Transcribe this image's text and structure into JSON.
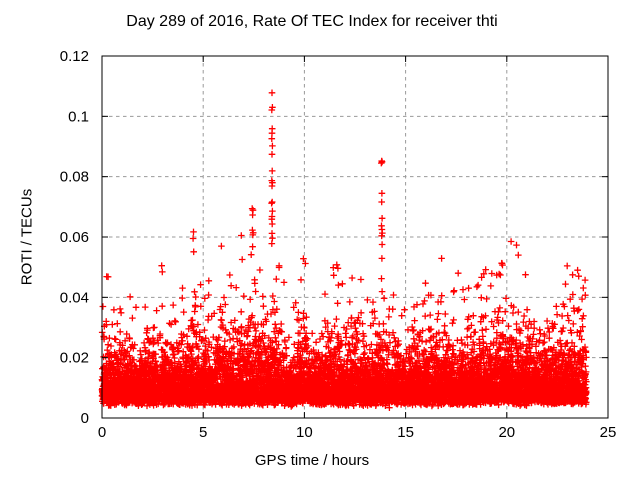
{
  "chart_data": {
    "type": "scatter",
    "title": "Day 289 of 2016, Rate Of TEC Index for receiver thti",
    "xlabel": "GPS time / hours",
    "ylabel": "ROTI / TECUs",
    "xlim": [
      0,
      25
    ],
    "ylim": [
      0,
      0.12
    ],
    "xticks": [
      0,
      5,
      10,
      15,
      20,
      25
    ],
    "xtick_labels": [
      "0",
      "5",
      "10",
      "15",
      "20",
      "25"
    ],
    "yticks": [
      0,
      0.02,
      0.04,
      0.06,
      0.08,
      0.1,
      0.12
    ],
    "ytick_labels": [
      "0",
      "0.02",
      "0.04",
      "0.06",
      "0.08",
      "0.1",
      "0.12"
    ],
    "grid": {
      "show": true,
      "color": "#999999",
      "dash": [
        3.5,
        3.5
      ]
    },
    "border_color": "#000000",
    "marker": {
      "glyph": "plus",
      "color": "#ff0000",
      "half_size": 3.3,
      "stroke_width": 1.3
    },
    "time_range_hours": [
      0,
      23.93
    ],
    "approx_point_count": 9000,
    "seed": 289,
    "band": {
      "floor": 0.0055,
      "tail_divisor": 6
    },
    "upper_envelope": [
      [
        0,
        0.044
      ],
      [
        0.25,
        0.047
      ],
      [
        0.6,
        0.041
      ],
      [
        0.9,
        0.038
      ],
      [
        1.2,
        0.041
      ],
      [
        1.6,
        0.037
      ],
      [
        2.0,
        0.036
      ],
      [
        2.4,
        0.042
      ],
      [
        2.9,
        0.05
      ],
      [
        3.2,
        0.046
      ],
      [
        3.5,
        0.041
      ],
      [
        3.9,
        0.044
      ],
      [
        4.2,
        0.043
      ],
      [
        4.5,
        0.057
      ],
      [
        4.85,
        0.046
      ],
      [
        5.2,
        0.043
      ],
      [
        5.55,
        0.046
      ],
      [
        5.9,
        0.054
      ],
      [
        6.3,
        0.046
      ],
      [
        6.6,
        0.044
      ],
      [
        6.95,
        0.055
      ],
      [
        7.2,
        0.05
      ],
      [
        7.45,
        0.058
      ],
      [
        7.9,
        0.051
      ],
      [
        8.2,
        0.055
      ],
      [
        8.4,
        0.059
      ],
      [
        8.6,
        0.054
      ],
      [
        8.85,
        0.047
      ],
      [
        9.2,
        0.037
      ],
      [
        9.45,
        0.04
      ],
      [
        9.7,
        0.049
      ],
      [
        10.05,
        0.047
      ],
      [
        10.45,
        0.039
      ],
      [
        10.7,
        0.037
      ],
      [
        11.1,
        0.044
      ],
      [
        11.55,
        0.05
      ],
      [
        11.8,
        0.047
      ],
      [
        12.1,
        0.049
      ],
      [
        12.4,
        0.044
      ],
      [
        12.7,
        0.046
      ],
      [
        13.0,
        0.042
      ],
      [
        13.4,
        0.043
      ],
      [
        13.85,
        0.042
      ],
      [
        14.2,
        0.04
      ],
      [
        14.55,
        0.043
      ],
      [
        14.9,
        0.041
      ],
      [
        15.3,
        0.043
      ],
      [
        15.7,
        0.047
      ],
      [
        16.1,
        0.043
      ],
      [
        16.5,
        0.045
      ],
      [
        16.8,
        0.051
      ],
      [
        17.1,
        0.043
      ],
      [
        17.5,
        0.047
      ],
      [
        17.85,
        0.044
      ],
      [
        18.2,
        0.041
      ],
      [
        18.6,
        0.044
      ],
      [
        18.95,
        0.051
      ],
      [
        19.3,
        0.047
      ],
      [
        19.7,
        0.05
      ],
      [
        20.0,
        0.047
      ],
      [
        20.3,
        0.055
      ],
      [
        20.6,
        0.052
      ],
      [
        20.9,
        0.046
      ],
      [
        21.3,
        0.044
      ],
      [
        21.7,
        0.042
      ],
      [
        22.0,
        0.044
      ],
      [
        22.4,
        0.047
      ],
      [
        22.75,
        0.049
      ],
      [
        23.0,
        0.05
      ],
      [
        23.3,
        0.049
      ],
      [
        23.6,
        0.047
      ],
      [
        23.85,
        0.048
      ],
      [
        24,
        0.044
      ]
    ],
    "spike_points": [
      [
        8.4,
        0.1078
      ],
      [
        8.42,
        0.103
      ],
      [
        8.39,
        0.1021
      ],
      [
        8.41,
        0.0959
      ],
      [
        8.4,
        0.0944
      ],
      [
        8.39,
        0.0926
      ],
      [
        8.42,
        0.0902
      ],
      [
        8.4,
        0.0874
      ],
      [
        8.41,
        0.0819
      ],
      [
        8.39,
        0.0787
      ],
      [
        8.42,
        0.078
      ],
      [
        8.4,
        0.0769
      ],
      [
        8.41,
        0.0716
      ],
      [
        8.38,
        0.0712
      ],
      [
        8.42,
        0.0686
      ],
      [
        8.4,
        0.0668
      ],
      [
        8.39,
        0.0659
      ],
      [
        8.41,
        0.0643
      ],
      [
        8.4,
        0.0612
      ],
      [
        8.42,
        0.0596
      ],
      [
        8.39,
        0.0578
      ],
      [
        13.82,
        0.0852
      ],
      [
        13.84,
        0.0849
      ],
      [
        13.8,
        0.0845
      ],
      [
        13.83,
        0.0745
      ],
      [
        13.82,
        0.0716
      ],
      [
        13.84,
        0.0662
      ],
      [
        13.81,
        0.0637
      ],
      [
        13.83,
        0.0625
      ],
      [
        13.85,
        0.0613
      ],
      [
        13.82,
        0.0604
      ],
      [
        13.84,
        0.0575
      ],
      [
        13.83,
        0.0529
      ],
      [
        13.81,
        0.0462
      ],
      [
        13.84,
        0.0419
      ],
      [
        7.42,
        0.0694
      ],
      [
        7.46,
        0.0689
      ],
      [
        7.44,
        0.0673
      ],
      [
        7.43,
        0.0623
      ],
      [
        7.47,
        0.0614
      ],
      [
        7.45,
        0.0607
      ],
      [
        7.44,
        0.0568
      ],
      [
        6.88,
        0.0605
      ],
      [
        5.9,
        0.057
      ],
      [
        4.52,
        0.0617
      ],
      [
        4.5,
        0.0595
      ],
      [
        4.53,
        0.0551
      ],
      [
        2.95,
        0.0505
      ],
      [
        0.3,
        0.0468
      ],
      [
        9.95,
        0.0528
      ],
      [
        10.05,
        0.0512
      ],
      [
        11.6,
        0.0508
      ],
      [
        16.78,
        0.0529
      ],
      [
        17.6,
        0.048
      ],
      [
        19.26,
        0.0479
      ],
      [
        19.75,
        0.0513
      ],
      [
        20.21,
        0.0585
      ],
      [
        20.48,
        0.0573
      ],
      [
        20.57,
        0.054
      ],
      [
        23.5,
        0.049
      ],
      [
        23.55,
        0.047
      ],
      [
        23.87,
        0.0457
      ]
    ],
    "low_outliers": [
      [
        2.55,
        0.0042
      ],
      [
        9.35,
        0.0038
      ],
      [
        14.2,
        0.0034
      ],
      [
        16.3,
        0.004
      ],
      [
        20.9,
        0.0043
      ]
    ]
  }
}
